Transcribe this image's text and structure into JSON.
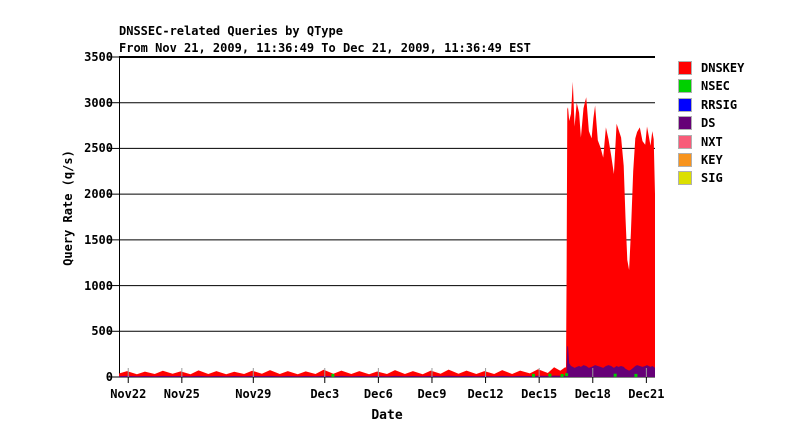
{
  "chart": {
    "title": "DNSSEC-related Queries by QType",
    "subtitle": "From Nov 21, 2009, 11:36:49 To Dec 21, 2009, 11:36:49 EST",
    "y_axis_title": "Query Rate (q/s)",
    "x_axis_title": "Date"
  },
  "legend": {
    "items": [
      {
        "label": "DNSKEY",
        "color": "#ff0000"
      },
      {
        "label": "NSEC",
        "color": "#00d000"
      },
      {
        "label": "RRSIG",
        "color": "#0000ff"
      },
      {
        "label": "DS",
        "color": "#660077"
      },
      {
        "label": "NXT",
        "color": "#f85c79"
      },
      {
        "label": "KEY",
        "color": "#f7941e"
      },
      {
        "label": "SIG",
        "color": "#dcdf00"
      }
    ]
  },
  "chart_data": {
    "type": "area",
    "stacked": true,
    "title": "DNSSEC-related Queries by QType",
    "subtitle": "From Nov 21, 2009, 11:36:49 To Dec 21, 2009, 11:36:49 EST",
    "xlabel": "Date",
    "ylabel": "Query Rate (q/s)",
    "ylim": [
      0,
      3500
    ],
    "y_ticks": [
      0,
      500,
      1000,
      1500,
      2000,
      2500,
      3000,
      3500
    ],
    "x_unit": "days since Nov 21, 2009 11:36:49 EST",
    "x_range_days": [
      0,
      30
    ],
    "x_ticks": [
      {
        "label": "Nov22",
        "day": 0.517
      },
      {
        "label": "Nov25",
        "day": 3.517
      },
      {
        "label": "Nov29",
        "day": 7.517
      },
      {
        "label": "Dec3",
        "day": 11.517
      },
      {
        "label": "Dec6",
        "day": 14.517
      },
      {
        "label": "Dec9",
        "day": 17.517
      },
      {
        "label": "Dec12",
        "day": 20.517
      },
      {
        "label": "Dec15",
        "day": 23.517
      },
      {
        "label": "Dec18",
        "day": 26.517
      },
      {
        "label": "Dec21",
        "day": 29.517
      }
    ],
    "grid": "horizontal black lines at each 500 q/s",
    "legend_position": "right",
    "series": [
      {
        "name": "DNSKEY",
        "color": "#ff0000",
        "note": "dominant area; ~20-90 q/s baseline until Dec 16 midday, then burst 1100-3130 q/s through Dec 21"
      },
      {
        "name": "NSEC",
        "color": "#00d000",
        "note": "near zero; occasional tiny blips"
      },
      {
        "name": "RRSIG",
        "color": "#0000ff",
        "note": "not visibly above zero"
      },
      {
        "name": "DS",
        "color": "#660077",
        "note": "thin band ~8-16 q/s baseline; spike ~350 at burst onset then ~70-150 q/s"
      },
      {
        "name": "NXT",
        "color": "#f85c79",
        "note": "not visibly above zero"
      },
      {
        "name": "KEY",
        "color": "#f7941e",
        "note": "not visibly above zero"
      },
      {
        "name": "SIG",
        "color": "#dcdf00",
        "note": "not visibly above zero"
      }
    ],
    "points_format": [
      "day",
      "DNSKEY_qps",
      "DS_qps"
    ],
    "points": [
      [
        0,
        28,
        10
      ],
      [
        0.45,
        52,
        12
      ],
      [
        1,
        22,
        9
      ],
      [
        1.45,
        48,
        11
      ],
      [
        2,
        24,
        9
      ],
      [
        2.45,
        56,
        12
      ],
      [
        3,
        26,
        10
      ],
      [
        3.45,
        50,
        11
      ],
      [
        4,
        22,
        9
      ],
      [
        4.45,
        60,
        12
      ],
      [
        5,
        24,
        9
      ],
      [
        5.45,
        53,
        11
      ],
      [
        6,
        22,
        9
      ],
      [
        6.45,
        47,
        11
      ],
      [
        7,
        24,
        9
      ],
      [
        7.45,
        57,
        12
      ],
      [
        8,
        26,
        10
      ],
      [
        8.45,
        63,
        12
      ],
      [
        9,
        24,
        9
      ],
      [
        9.45,
        53,
        11
      ],
      [
        10,
        22,
        9
      ],
      [
        10.45,
        50,
        11
      ],
      [
        11,
        24,
        9
      ],
      [
        11.45,
        68,
        12
      ],
      [
        12,
        26,
        10
      ],
      [
        12.45,
        58,
        12
      ],
      [
        13,
        24,
        9
      ],
      [
        13.45,
        53,
        11
      ],
      [
        14,
        22,
        9
      ],
      [
        14.45,
        49,
        11
      ],
      [
        15,
        24,
        9
      ],
      [
        15.45,
        63,
        12
      ],
      [
        16,
        24,
        9
      ],
      [
        16.45,
        53,
        11
      ],
      [
        17,
        22,
        9
      ],
      [
        17.45,
        58,
        12
      ],
      [
        18,
        26,
        10
      ],
      [
        18.45,
        68,
        13
      ],
      [
        19,
        26,
        10
      ],
      [
        19.45,
        58,
        12
      ],
      [
        20,
        24,
        9
      ],
      [
        20.45,
        53,
        11
      ],
      [
        21,
        24,
        9
      ],
      [
        21.45,
        63,
        12
      ],
      [
        22,
        24,
        9
      ],
      [
        22.45,
        58,
        12
      ],
      [
        23,
        28,
        11
      ],
      [
        23.45,
        72,
        13
      ],
      [
        24,
        32,
        12
      ],
      [
        24.35,
        92,
        15
      ],
      [
        24.7,
        55,
        13
      ],
      [
        24.95,
        88,
        16
      ],
      [
        25.02,
        85,
        20
      ],
      [
        25.05,
        1060,
        60
      ],
      [
        25.09,
        2600,
        330
      ],
      [
        25.13,
        2610,
        340
      ],
      [
        25.2,
        2650,
        150
      ],
      [
        25.3,
        2760,
        120
      ],
      [
        25.4,
        3120,
        110
      ],
      [
        25.5,
        2640,
        100
      ],
      [
        25.62,
        2890,
        110
      ],
      [
        25.75,
        2770,
        120
      ],
      [
        25.85,
        2510,
        110
      ],
      [
        26.0,
        2810,
        130
      ],
      [
        26.15,
        2940,
        120
      ],
      [
        26.3,
        2590,
        100
      ],
      [
        26.45,
        2500,
        110
      ],
      [
        26.55,
        2710,
        120
      ],
      [
        26.65,
        2840,
        130
      ],
      [
        26.8,
        2470,
        120
      ],
      [
        26.95,
        2400,
        110
      ],
      [
        27.1,
        2300,
        100
      ],
      [
        27.25,
        2610,
        120
      ],
      [
        27.4,
        2470,
        130
      ],
      [
        27.55,
        2300,
        120
      ],
      [
        27.7,
        2120,
        100
      ],
      [
        27.85,
        2650,
        120
      ],
      [
        27.95,
        2600,
        110
      ],
      [
        28.1,
        2500,
        120
      ],
      [
        28.25,
        2200,
        110
      ],
      [
        28.35,
        1650,
        90
      ],
      [
        28.45,
        1200,
        80
      ],
      [
        28.55,
        1100,
        70
      ],
      [
        28.65,
        1500,
        80
      ],
      [
        28.78,
        2150,
        100
      ],
      [
        28.9,
        2490,
        120
      ],
      [
        29.0,
        2550,
        130
      ],
      [
        29.15,
        2610,
        120
      ],
      [
        29.3,
        2470,
        110
      ],
      [
        29.45,
        2420,
        120
      ],
      [
        29.55,
        2610,
        130
      ],
      [
        29.65,
        2520,
        120
      ],
      [
        29.75,
        2420,
        110
      ],
      [
        29.85,
        2570,
        120
      ],
      [
        29.93,
        2490,
        110
      ],
      [
        30,
        1900,
        100
      ]
    ],
    "nsec_markers_format": [
      "day",
      "qps"
    ],
    "nsec_markers": [
      [
        11.97,
        18
      ],
      [
        23.2,
        18
      ],
      [
        24.12,
        20
      ],
      [
        24.8,
        16
      ],
      [
        25.05,
        25
      ],
      [
        27.77,
        20
      ],
      [
        28.93,
        18
      ]
    ],
    "colors": {
      "background": "#ffffff",
      "axis": "#000000",
      "grid": "#000000",
      "tick_over_data": "#999999"
    }
  }
}
